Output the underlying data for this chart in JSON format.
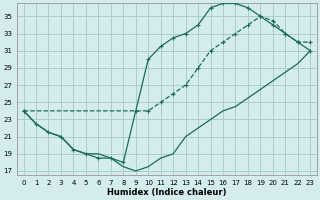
{
  "xlabel": "Humidex (Indice chaleur)",
  "bg_color": "#d4edec",
  "grid_color": "#aacccc",
  "line_color": "#1a6b5a",
  "xlim": [
    -0.5,
    23.5
  ],
  "ylim": [
    16.5,
    36.5
  ],
  "xticks": [
    0,
    1,
    2,
    3,
    4,
    5,
    6,
    7,
    8,
    9,
    10,
    11,
    12,
    13,
    14,
    15,
    16,
    17,
    18,
    19,
    20,
    21,
    22,
    23
  ],
  "yticks": [
    17,
    19,
    21,
    23,
    25,
    27,
    29,
    31,
    33,
    35
  ],
  "line1_x": [
    0,
    1,
    2,
    3,
    4,
    5,
    6,
    7,
    8,
    9,
    10,
    11,
    12,
    13,
    14,
    15,
    16,
    17,
    18,
    19,
    20,
    21,
    22,
    23
  ],
  "line1_y": [
    24,
    22.5,
    21.5,
    21,
    19.5,
    19,
    19,
    18.5,
    17.5,
    17,
    17.5,
    18.5,
    19,
    21,
    22,
    23,
    24,
    24.5,
    25.5,
    26.5,
    27.5,
    28.5,
    29.5,
    31
  ],
  "line2_x": [
    0,
    1,
    2,
    3,
    4,
    5,
    6,
    7,
    8,
    9,
    10,
    11,
    12,
    13,
    14,
    15,
    16,
    17,
    18,
    19,
    20,
    21,
    22,
    23
  ],
  "line2_y": [
    24,
    22.5,
    21.5,
    21,
    19.5,
    19,
    18.5,
    18.5,
    18,
    24,
    30,
    31.5,
    32.5,
    33,
    34,
    36,
    36.5,
    36.5,
    36,
    35,
    34,
    33,
    32,
    31
  ],
  "line3_x": [
    0,
    10,
    11,
    12,
    13,
    14,
    15,
    16,
    17,
    18,
    19,
    20,
    21,
    22,
    23
  ],
  "line3_y": [
    24,
    24,
    25,
    26,
    27,
    29,
    31,
    32,
    33,
    34,
    35,
    34.5,
    33,
    32,
    32
  ]
}
